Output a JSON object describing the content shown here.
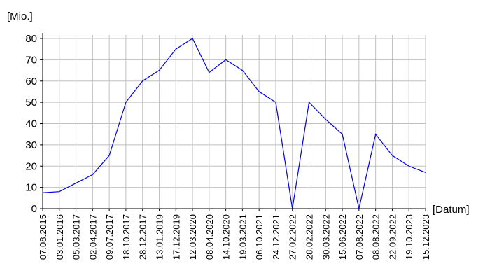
{
  "chart_data": {
    "type": "line",
    "y_label": "[Mio.]",
    "x_label": "[Datum]",
    "categories": [
      "07.08.2015",
      "03.01.2016",
      "05.03.2017",
      "02.04.2017",
      "09.07.2017",
      "18.10.2017",
      "28.12.2017",
      "13.01.2019",
      "17.12.2019",
      "12.03.2020",
      "08.04.2020",
      "14.10.2020",
      "19.03.2021",
      "06.10.2021",
      "24.12.2021",
      "27.02.2022",
      "28.02.2022",
      "30.03.2022",
      "15.06.2022",
      "07.08.2022",
      "08.08.2022",
      "22.09.2022",
      "19.10.2023",
      "15.12.2023"
    ],
    "series": [
      {
        "color": "#0000ee",
        "values": [
          7.5,
          8,
          12,
          16,
          25,
          50,
          60,
          65,
          75,
          80,
          64,
          70,
          65,
          55,
          50,
          0,
          50,
          42,
          35,
          0,
          35,
          25,
          20,
          17
        ]
      }
    ],
    "ylim": [
      0,
      80
    ],
    "yticks": [
      0,
      10,
      20,
      30,
      40,
      50,
      60,
      70,
      80
    ],
    "grid": true
  }
}
